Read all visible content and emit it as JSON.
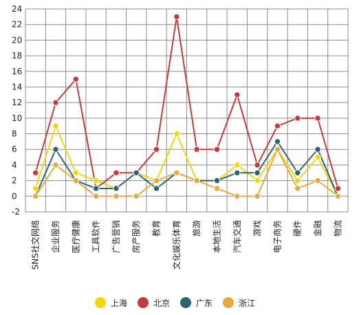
{
  "chart_data": {
    "type": "line",
    "title": "",
    "xlabel": "",
    "ylabel": "",
    "ylim": [
      -2,
      24
    ],
    "yticks": [
      -2,
      0,
      2,
      4,
      6,
      8,
      10,
      12,
      14,
      16,
      18,
      20,
      22,
      24
    ],
    "grid": true,
    "legend_position": "bottom",
    "categories": [
      "SNS社交网络",
      "企业服务",
      "医疗健康",
      "工具软件",
      "广告营销",
      "房产服务",
      "教育",
      "文化娱乐体育",
      "旅游",
      "本地生活",
      "汽车交通",
      "游戏",
      "电子商务",
      "硬件",
      "金融",
      "物流"
    ],
    "series": [
      {
        "name": "上海",
        "color": "#f5d50b",
        "values": [
          1,
          9,
          3,
          2,
          1,
          3,
          2,
          8,
          2,
          2,
          4,
          2,
          6,
          2,
          5,
          0
        ]
      },
      {
        "name": "北京",
        "color": "#c8393b",
        "values": [
          3,
          12,
          15,
          1,
          3,
          3,
          6,
          23,
          6,
          6,
          13,
          4,
          9,
          10,
          10,
          1
        ]
      },
      {
        "name": "广东",
        "color": "#2c6570",
        "values": [
          0,
          6,
          2,
          1,
          1,
          3,
          1,
          3,
          2,
          2,
          3,
          3,
          7,
          3,
          6,
          0
        ]
      },
      {
        "name": "浙江",
        "color": "#e8aa3c",
        "values": [
          0,
          4,
          2,
          0,
          0,
          0,
          2,
          3,
          2,
          1,
          0,
          0,
          6,
          1,
          2,
          0
        ]
      }
    ]
  }
}
